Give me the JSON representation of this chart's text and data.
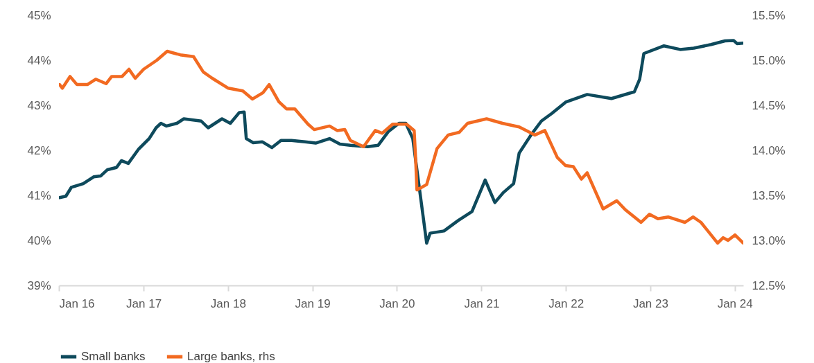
{
  "chart_data": {
    "type": "line",
    "legend": "bottom",
    "grid": false,
    "xlim": [
      "2016-01-01",
      "2024-02-07"
    ],
    "xticks": [
      {
        "value": "2016-01-01",
        "label": "Jan 16"
      },
      {
        "value": "2017-01-01",
        "label": "Jan 17"
      },
      {
        "value": "2018-01-01",
        "label": "Jan 18"
      },
      {
        "value": "2019-01-01",
        "label": "Jan 19"
      },
      {
        "value": "2020-01-01",
        "label": "Jan 20"
      },
      {
        "value": "2021-01-01",
        "label": "Jan 21"
      },
      {
        "value": "2022-01-01",
        "label": "Jan 22"
      },
      {
        "value": "2023-01-01",
        "label": "Jan 23"
      },
      {
        "value": "2024-01-01",
        "label": "Jan 24"
      }
    ],
    "ylim": [
      39,
      45
    ],
    "yticks": [
      {
        "value": 39,
        "label": "39%"
      },
      {
        "value": 40,
        "label": "40%"
      },
      {
        "value": 41,
        "label": "41%"
      },
      {
        "value": 42,
        "label": "42%"
      },
      {
        "value": 43,
        "label": "43%"
      },
      {
        "value": 44,
        "label": "44%"
      },
      {
        "value": 45,
        "label": "45%"
      }
    ],
    "y2lim": [
      12.5,
      15.5
    ],
    "y2ticks": [
      {
        "value": 12.5,
        "label": "12.5%"
      },
      {
        "value": 13,
        "label": "13.0%"
      },
      {
        "value": 13.5,
        "label": "13.5%"
      },
      {
        "value": 14,
        "label": "14.0%"
      },
      {
        "value": 14.5,
        "label": "14.5%"
      },
      {
        "value": 15,
        "label": "15.0%"
      },
      {
        "value": 15.5,
        "label": "15.5%"
      }
    ],
    "series": [
      {
        "name": "Small banks",
        "color": "#0e4a5c",
        "x": [
          "2016-01-04",
          "2016-01-31",
          "2016-02-24",
          "2016-04-15",
          "2016-05-30",
          "2016-06-29",
          "2016-07-29",
          "2016-09-06",
          "2016-09-27",
          "2016-10-27",
          "2016-12-11",
          "2017-01-25",
          "2017-02-24",
          "2017-03-17",
          "2017-04-10",
          "2017-05-25",
          "2017-06-24",
          "2017-09-07",
          "2017-10-07",
          "2017-11-06",
          "2017-12-06",
          "2018-01-11",
          "2018-02-19",
          "2018-03-12",
          "2018-03-21",
          "2018-04-20",
          "2018-05-29",
          "2018-07-10",
          "2018-08-18",
          "2018-10-02",
          "2018-12-01",
          "2019-01-15",
          "2019-03-16",
          "2019-04-30",
          "2019-06-14",
          "2019-08-28",
          "2019-10-12",
          "2019-11-26",
          "2020-01-10",
          "2020-02-09",
          "2020-03-10",
          "2020-05-09",
          "2020-05-24",
          "2020-07-23",
          "2020-09-22",
          "2020-11-21",
          "2021-01-17",
          "2021-02-28",
          "2021-04-05",
          "2021-05-20",
          "2021-06-13",
          "2021-08-03",
          "2021-09-17",
          "2021-11-01",
          "2021-12-31",
          "2022-04-03",
          "2022-07-17",
          "2022-10-24",
          "2022-11-16",
          "2022-12-04",
          "2023-03-01",
          "2023-05-10",
          "2023-07-08",
          "2023-09-21",
          "2023-11-20",
          "2023-12-27",
          "2024-01-11",
          "2024-02-07"
        ],
        "values": [
          40.95,
          40.98,
          41.18,
          41.26,
          41.41,
          41.43,
          41.57,
          41.62,
          41.77,
          41.71,
          42.03,
          42.26,
          42.5,
          42.6,
          42.54,
          42.6,
          42.7,
          42.65,
          42.5,
          42.6,
          42.7,
          42.6,
          42.84,
          42.85,
          42.26,
          42.17,
          42.19,
          42.06,
          42.22,
          42.22,
          42.19,
          42.16,
          42.26,
          42.14,
          42.11,
          42.08,
          42.11,
          42.42,
          42.6,
          42.6,
          42.26,
          39.94,
          40.16,
          40.21,
          40.44,
          40.64,
          41.34,
          40.84,
          41.06,
          41.26,
          41.94,
          42.34,
          42.65,
          42.82,
          43.07,
          43.24,
          43.15,
          43.3,
          43.58,
          44.15,
          44.32,
          44.24,
          44.27,
          44.35,
          44.43,
          44.44,
          44.37,
          44.38
        ]
      },
      {
        "name": "Large banks, rhs",
        "color": "#f26a21",
        "axis": "y2",
        "x": [
          "2016-01-04",
          "2016-01-16",
          "2016-02-18",
          "2016-03-19",
          "2016-05-03",
          "2016-06-08",
          "2016-07-23",
          "2016-08-16",
          "2016-09-30",
          "2016-10-30",
          "2016-11-26",
          "2017-01-01",
          "2017-02-27",
          "2017-04-13",
          "2017-06-09",
          "2017-08-05",
          "2017-09-16",
          "2017-10-25",
          "2018-01-02",
          "2018-03-06",
          "2018-04-17",
          "2018-06-01",
          "2018-06-28",
          "2018-08-09",
          "2018-09-11",
          "2018-10-17",
          "2018-12-13",
          "2019-01-09",
          "2019-03-16",
          "2019-04-18",
          "2019-05-21",
          "2019-06-14",
          "2019-08-10",
          "2019-09-30",
          "2019-10-30",
          "2019-12-14",
          "2020-02-12",
          "2020-03-16",
          "2020-03-22",
          "2020-03-28",
          "2020-05-09",
          "2020-06-23",
          "2020-08-10",
          "2020-09-27",
          "2020-11-02",
          "2021-01-23",
          "2021-04-02",
          "2021-06-13",
          "2021-08-20",
          "2021-10-02",
          "2021-11-25",
          "2021-12-31",
          "2022-02-02",
          "2022-03-09",
          "2022-04-03",
          "2022-06-11",
          "2022-08-09",
          "2022-09-15",
          "2022-11-22",
          "2022-12-28",
          "2023-02-03",
          "2023-03-19",
          "2023-05-31",
          "2023-07-05",
          "2023-08-08",
          "2023-10-19",
          "2023-11-12",
          "2023-12-03",
          "2024-01-02",
          "2024-02-07"
        ],
        "values": [
          14.73,
          14.69,
          14.82,
          14.73,
          14.73,
          14.79,
          14.74,
          14.82,
          14.82,
          14.9,
          14.8,
          14.9,
          15.0,
          15.1,
          15.06,
          15.04,
          14.87,
          14.8,
          14.69,
          14.66,
          14.57,
          14.64,
          14.73,
          14.54,
          14.46,
          14.46,
          14.29,
          14.23,
          14.27,
          14.22,
          14.23,
          14.11,
          14.04,
          14.22,
          14.19,
          14.29,
          14.29,
          14.22,
          13.92,
          13.56,
          13.62,
          14.02,
          14.17,
          14.2,
          14.3,
          14.35,
          14.3,
          14.26,
          14.17,
          14.22,
          13.92,
          13.83,
          13.82,
          13.68,
          13.75,
          13.35,
          13.44,
          13.34,
          13.2,
          13.29,
          13.24,
          13.26,
          13.2,
          13.26,
          13.2,
          12.97,
          13.03,
          13.0,
          13.06,
          12.97
        ]
      }
    ]
  }
}
